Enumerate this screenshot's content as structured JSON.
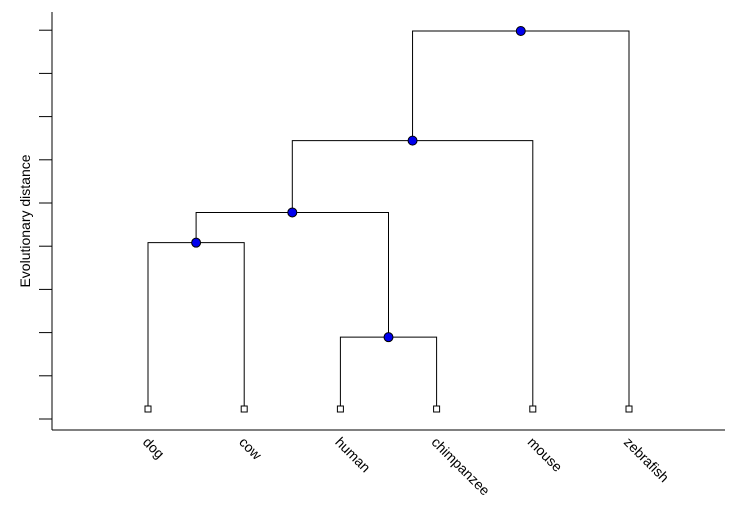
{
  "chart_data": {
    "type": "dendrogram",
    "ylabel": "Evolutionary distance",
    "y_ticks_count": 10,
    "leaves": [
      "dog",
      "cow",
      "human",
      "chimpanzee",
      "mouse",
      "zebrafish"
    ],
    "merges": [
      {
        "left": "human",
        "right": "chimpanzee",
        "height": 0.19
      },
      {
        "left": "dog",
        "right": "cow",
        "height": 0.44
      },
      {
        "left": "dog+cow",
        "right": "human+chimpanzee",
        "height": 0.52
      },
      {
        "left": "dog+cow+human+chimpanzee",
        "right": "mouse",
        "height": 0.71
      },
      {
        "left": "dog+cow+human+chimpanzee+mouse",
        "right": "zebrafish",
        "height": 1.0
      }
    ],
    "grid": false,
    "node_color": "#0000ee"
  }
}
